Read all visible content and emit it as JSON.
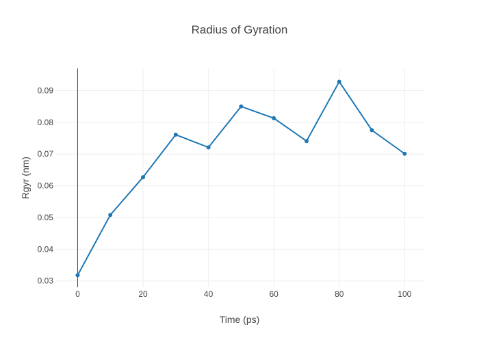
{
  "chart_data": {
    "type": "line",
    "title": "Radius of Gyration",
    "xlabel": "Time (ps)",
    "ylabel": "Rgyr (nm)",
    "x": [
      0,
      10,
      20,
      30,
      40,
      50,
      60,
      70,
      80,
      90,
      100
    ],
    "series": [
      {
        "values": [
          0.0318,
          0.0508,
          0.0627,
          0.0761,
          0.0721,
          0.085,
          0.0813,
          0.0741,
          0.0928,
          0.0775,
          0.0701
        ]
      }
    ],
    "xlim": [
      -7,
      106
    ],
    "ylim": [
      0.028,
      0.097
    ],
    "xticks": [
      0,
      20,
      40,
      60,
      80,
      100
    ],
    "yticks": [
      0.03,
      0.04,
      0.05,
      0.06,
      0.07,
      0.08,
      0.09
    ],
    "grid": true,
    "legend": "none",
    "colors": {
      "line": "#1f77b4",
      "grid": "#eeeeee",
      "zeroline": "#444444",
      "text": "#444444"
    }
  }
}
